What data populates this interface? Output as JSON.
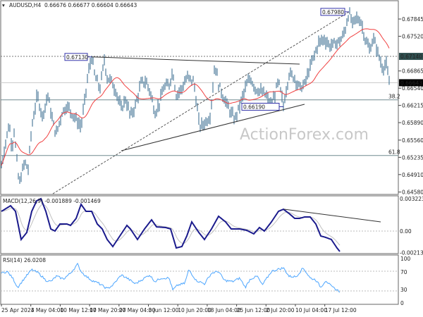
{
  "header": {
    "symbol": "AUDUSD,H4",
    "ohlc": "0.66676 0.66677 0.66604 0.66643"
  },
  "watermark": "ActionForex.com",
  "colors": {
    "bars": "#4f7d9c",
    "ma": "#f04040",
    "macd": "#1a1a8c",
    "signal": "#c0c0c0",
    "rsi": "#4da6ff",
    "label_box": "#3333aa",
    "price_box": "#000000",
    "level_box": "#2f4f4f"
  },
  "chart_data": [
    {
      "type": "line",
      "title": "AUDUSD,H4",
      "ylim": [
        0.6455,
        0.6805
      ],
      "yticks": [
        "0.67845",
        "0.67520",
        "0.66865",
        "0.66540",
        "0.66215",
        "0.65890",
        "0.65560",
        "0.65235",
        "0.64910",
        "0.64580"
      ],
      "ytick_values": [
        0.67845,
        0.6752,
        0.66865,
        0.6654,
        0.66215,
        0.6589,
        0.6556,
        0.65235,
        0.6491,
        0.6458
      ],
      "xticks": [
        "25 Apr 2024",
        "3 May 04:00",
        "10 May 12:00",
        "17 May 20:00",
        "27 May 04:00",
        "3 Jun 12:00",
        "10 Jun 20:00",
        "18 Jun 04:00",
        "25 Jun 12:00",
        "2 Jul 20:00",
        "10 Jul 04:00",
        "17 Jul 12:00"
      ],
      "bar_index": [
        2,
        13,
        17,
        20,
        27,
        35,
        40,
        45,
        53,
        60,
        68,
        75,
        80,
        88,
        95,
        105,
        115,
        120,
        125,
        130,
        135,
        142,
        148,
        152,
        158,
        165,
        172,
        178,
        185,
        192,
        200,
        207,
        213,
        220,
        225,
        232,
        240,
        245,
        250,
        258,
        265,
        275,
        278,
        283,
        290,
        298,
        305,
        310,
        318,
        325,
        333,
        340,
        348,
        355,
        362,
        370,
        377,
        385,
        395,
        402,
        410,
        418,
        425,
        432,
        440,
        445,
        452,
        460,
        468,
        478,
        485,
        490,
        495,
        500,
        505,
        512,
        518,
        524,
        530,
        536,
        542,
        548,
        552
      ],
      "close": [
        0.6508,
        0.6588,
        0.6541,
        0.6574,
        0.6472,
        0.6515,
        0.6501,
        0.6581,
        0.6641,
        0.6601,
        0.6641,
        0.6588,
        0.6568,
        0.6608,
        0.6621,
        0.6601,
        0.6581,
        0.6628,
        0.6681,
        0.6713,
        0.6674,
        0.6654,
        0.6707,
        0.6674,
        0.6667,
        0.6647,
        0.6614,
        0.6634,
        0.6601,
        0.6621,
        0.6663,
        0.6667,
        0.6647,
        0.6608,
        0.6621,
        0.6654,
        0.6661,
        0.6687,
        0.6641,
        0.6654,
        0.6674,
        0.6667,
        0.6634,
        0.6581,
        0.6588,
        0.6601,
        0.6701,
        0.6661,
        0.6634,
        0.6614,
        0.6594,
        0.6621,
        0.6654,
        0.6674,
        0.6654,
        0.6647,
        0.6641,
        0.6619,
        0.6667,
        0.6621,
        0.6681,
        0.6674,
        0.6654,
        0.6661,
        0.6694,
        0.6713,
        0.674,
        0.6747,
        0.6734,
        0.674,
        0.6747,
        0.6767,
        0.6798,
        0.6774,
        0.6787,
        0.678,
        0.6747,
        0.6727,
        0.6747,
        0.6721,
        0.6694,
        0.6698,
        0.66643
      ],
      "levels": [
        {
          "label": "0.67130",
          "price": 0.6713,
          "kind": "swing-high"
        },
        {
          "label": "0.66190",
          "price": 0.6619,
          "kind": "swing-low"
        },
        {
          "label": "0.67980",
          "price": 0.6798,
          "kind": "swing-high"
        },
        {
          "label": "0.67140",
          "price": 0.6714,
          "kind": "horizontal-dotted"
        },
        {
          "label": "0.66643",
          "price": 0.66643,
          "kind": "current-price"
        },
        {
          "label": "38.2",
          "price": 0.6632,
          "kind": "fibonacci"
        },
        {
          "label": "61.8",
          "price": 0.6527,
          "kind": "fibonacci"
        }
      ]
    },
    {
      "type": "line",
      "title": "MACD(12,26,9) -0.001889 -0.001469",
      "yticks": [
        "0.003223",
        "0.00",
        "-0.002132"
      ],
      "ytick_values": [
        0.003223,
        0,
        -0.002132
      ],
      "bar_index": [
        2,
        15,
        22,
        30,
        38,
        45,
        52,
        58,
        65,
        72,
        78,
        85,
        95,
        100,
        108,
        115,
        122,
        130,
        138,
        145,
        152,
        160,
        170,
        180,
        185,
        195,
        205,
        215,
        222,
        235,
        242,
        250,
        258,
        265,
        272,
        282,
        290,
        300,
        310,
        320,
        328,
        340,
        350,
        360,
        368,
        375,
        385,
        395,
        402,
        410,
        418,
        425,
        432,
        440,
        448,
        455,
        462,
        470,
        478,
        482
      ],
      "macd": [
        0.00196,
        0.00252,
        0.00196,
        -0.00084,
        -0.00014,
        0.00196,
        0.00301,
        0.00322,
        0.00196,
        0.00021,
        0,
        0.0007,
        0.0007,
        0.00056,
        0.00126,
        0.00266,
        0.00196,
        0.00196,
        0.0007,
        0.00021,
        -0.00084,
        -0.00154,
        -0.00049,
        0.00056,
        0.00021,
        -0.00084,
        0.00021,
        0.00112,
        0.00042,
        0.00035,
        0.00021,
        -0.00168,
        -0.00154,
        -0.00049,
        0.00091,
        -0.00014,
        -0.00084,
        0.00021,
        0.00147,
        0.00091,
        0.00021,
        0.00021,
        7e-05,
        -0.00028,
        0.00035,
        0,
        0.00091,
        0.00196,
        0.00217,
        0.00175,
        0.00126,
        0.00126,
        0.0014,
        0.0014,
        0.0007,
        -0.00049,
        -0.00063,
        -0.00084,
        -0.00168,
        -0.00203
      ]
    },
    {
      "type": "line",
      "title": "RSI(14) 26.0208",
      "yticks": [
        "100",
        "70",
        "30",
        "0"
      ],
      "ytick_values": [
        100,
        70,
        30,
        0
      ],
      "bar_index": [
        2,
        10,
        18,
        25,
        35,
        45,
        55,
        65,
        72,
        80,
        90,
        100,
        110,
        115,
        122,
        130,
        140,
        152,
        160,
        172,
        180,
        192,
        200,
        212,
        220,
        228,
        240,
        245,
        252,
        262,
        268,
        278,
        290,
        300,
        310,
        318,
        330,
        340,
        348,
        355,
        365,
        372,
        385,
        395,
        402,
        410,
        420,
        430,
        440,
        448,
        455,
        462,
        470,
        478,
        482
      ],
      "rsi": [
        67,
        71,
        56,
        35,
        56,
        75,
        67,
        51,
        48,
        60,
        54,
        67,
        87,
        71,
        60,
        51,
        44,
        32,
        40,
        63,
        56,
        43,
        51,
        63,
        48,
        56,
        56,
        29,
        40,
        44,
        75,
        51,
        43,
        67,
        71,
        51,
        48,
        56,
        35,
        54,
        60,
        40,
        71,
        76,
        79,
        60,
        59,
        79,
        56,
        52,
        35,
        51,
        37,
        29,
        26
      ]
    }
  ]
}
